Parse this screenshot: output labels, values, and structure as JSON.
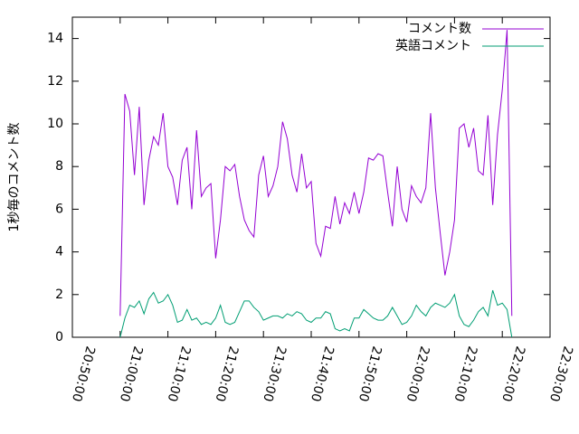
{
  "chart_data": {
    "type": "line",
    "y_label": "1秒毎のコメント数",
    "x": [
      "21:00:00",
      "21:01:00",
      "21:02:00",
      "21:03:00",
      "21:04:00",
      "21:05:00",
      "21:06:00",
      "21:07:00",
      "21:08:00",
      "21:09:00",
      "21:10:00",
      "21:11:00",
      "21:12:00",
      "21:13:00",
      "21:14:00",
      "21:15:00",
      "21:16:00",
      "21:17:00",
      "21:18:00",
      "21:19:00",
      "21:20:00",
      "21:21:00",
      "21:22:00",
      "21:23:00",
      "21:24:00",
      "21:25:00",
      "21:26:00",
      "21:27:00",
      "21:28:00",
      "21:29:00",
      "21:30:00",
      "21:31:00",
      "21:32:00",
      "21:33:00",
      "21:34:00",
      "21:35:00",
      "21:36:00",
      "21:37:00",
      "21:38:00",
      "21:39:00",
      "21:40:00",
      "21:41:00",
      "21:42:00",
      "21:43:00",
      "21:44:00",
      "21:45:00",
      "21:46:00",
      "21:47:00",
      "21:48:00",
      "21:49:00",
      "21:50:00",
      "21:51:00",
      "21:52:00",
      "21:53:00",
      "21:54:00",
      "21:55:00",
      "21:56:00",
      "21:57:00",
      "21:58:00",
      "21:59:00",
      "22:00:00",
      "22:01:00",
      "22:02:00",
      "22:03:00",
      "22:04:00",
      "22:05:00",
      "22:06:00",
      "22:07:00",
      "22:08:00",
      "22:09:00",
      "22:10:00",
      "22:11:00",
      "22:12:00",
      "22:13:00",
      "22:14:00",
      "22:15:00",
      "22:16:00",
      "22:17:00",
      "22:18:00",
      "22:19:00",
      "22:20:00",
      "22:21:00",
      "22:22:00"
    ],
    "series": [
      {
        "name": "コメント数",
        "color": "#9400d3",
        "values": [
          1.0,
          11.4,
          10.6,
          7.6,
          10.8,
          6.2,
          8.3,
          9.4,
          9.0,
          10.5,
          8.0,
          7.5,
          6.2,
          8.3,
          8.9,
          6.0,
          9.7,
          6.6,
          7.0,
          7.2,
          3.7,
          5.5,
          8.0,
          7.8,
          8.1,
          6.6,
          5.5,
          5.0,
          4.7,
          7.6,
          8.5,
          6.6,
          7.1,
          8.0,
          10.1,
          9.3,
          7.6,
          6.8,
          8.6,
          7.0,
          7.3,
          4.4,
          3.8,
          5.2,
          5.1,
          6.6,
          5.3,
          6.3,
          5.8,
          6.8,
          5.8,
          6.8,
          8.4,
          8.3,
          8.6,
          8.5,
          6.8,
          5.2,
          8.0,
          6.0,
          5.4,
          7.1,
          6.6,
          6.3,
          7.0,
          10.5,
          7.0,
          4.9,
          2.9,
          4.0,
          5.5,
          9.8,
          10.0,
          8.9,
          9.8,
          7.8,
          7.6,
          10.4,
          6.2,
          9.5,
          11.6,
          14.4,
          1.0
        ]
      },
      {
        "name": "英語コメント",
        "color": "#009e73",
        "values": [
          0.0,
          0.9,
          1.5,
          1.4,
          1.7,
          1.1,
          1.8,
          2.1,
          1.6,
          1.7,
          2.0,
          1.5,
          0.7,
          0.8,
          1.3,
          0.8,
          0.9,
          0.6,
          0.7,
          0.6,
          0.9,
          1.5,
          0.7,
          0.6,
          0.7,
          1.2,
          1.7,
          1.7,
          1.4,
          1.2,
          0.8,
          0.9,
          1.0,
          1.0,
          0.9,
          1.1,
          1.0,
          1.2,
          1.1,
          0.8,
          0.7,
          0.9,
          0.9,
          1.2,
          1.1,
          0.4,
          0.3,
          0.4,
          0.3,
          0.9,
          0.9,
          1.3,
          1.1,
          0.9,
          0.8,
          0.8,
          1.0,
          1.4,
          1.0,
          0.6,
          0.7,
          1.0,
          1.5,
          1.2,
          1.0,
          1.4,
          1.6,
          1.5,
          1.4,
          1.6,
          2.0,
          1.0,
          0.6,
          0.5,
          0.8,
          1.2,
          1.4,
          1.0,
          2.2,
          1.5,
          1.6,
          1.3,
          0.0
        ]
      }
    ],
    "xlim": [
      "20:50:00",
      "22:30:00"
    ],
    "xticks": [
      "20:50:00",
      "21:00:00",
      "21:10:00",
      "21:20:00",
      "21:30:00",
      "21:40:00",
      "21:50:00",
      "22:00:00",
      "22:10:00",
      "22:20:00",
      "22:30:00"
    ],
    "ylim": [
      0,
      15
    ],
    "yticks": [
      0,
      2,
      4,
      6,
      8,
      10,
      12,
      14
    ],
    "legend": "top-right"
  }
}
